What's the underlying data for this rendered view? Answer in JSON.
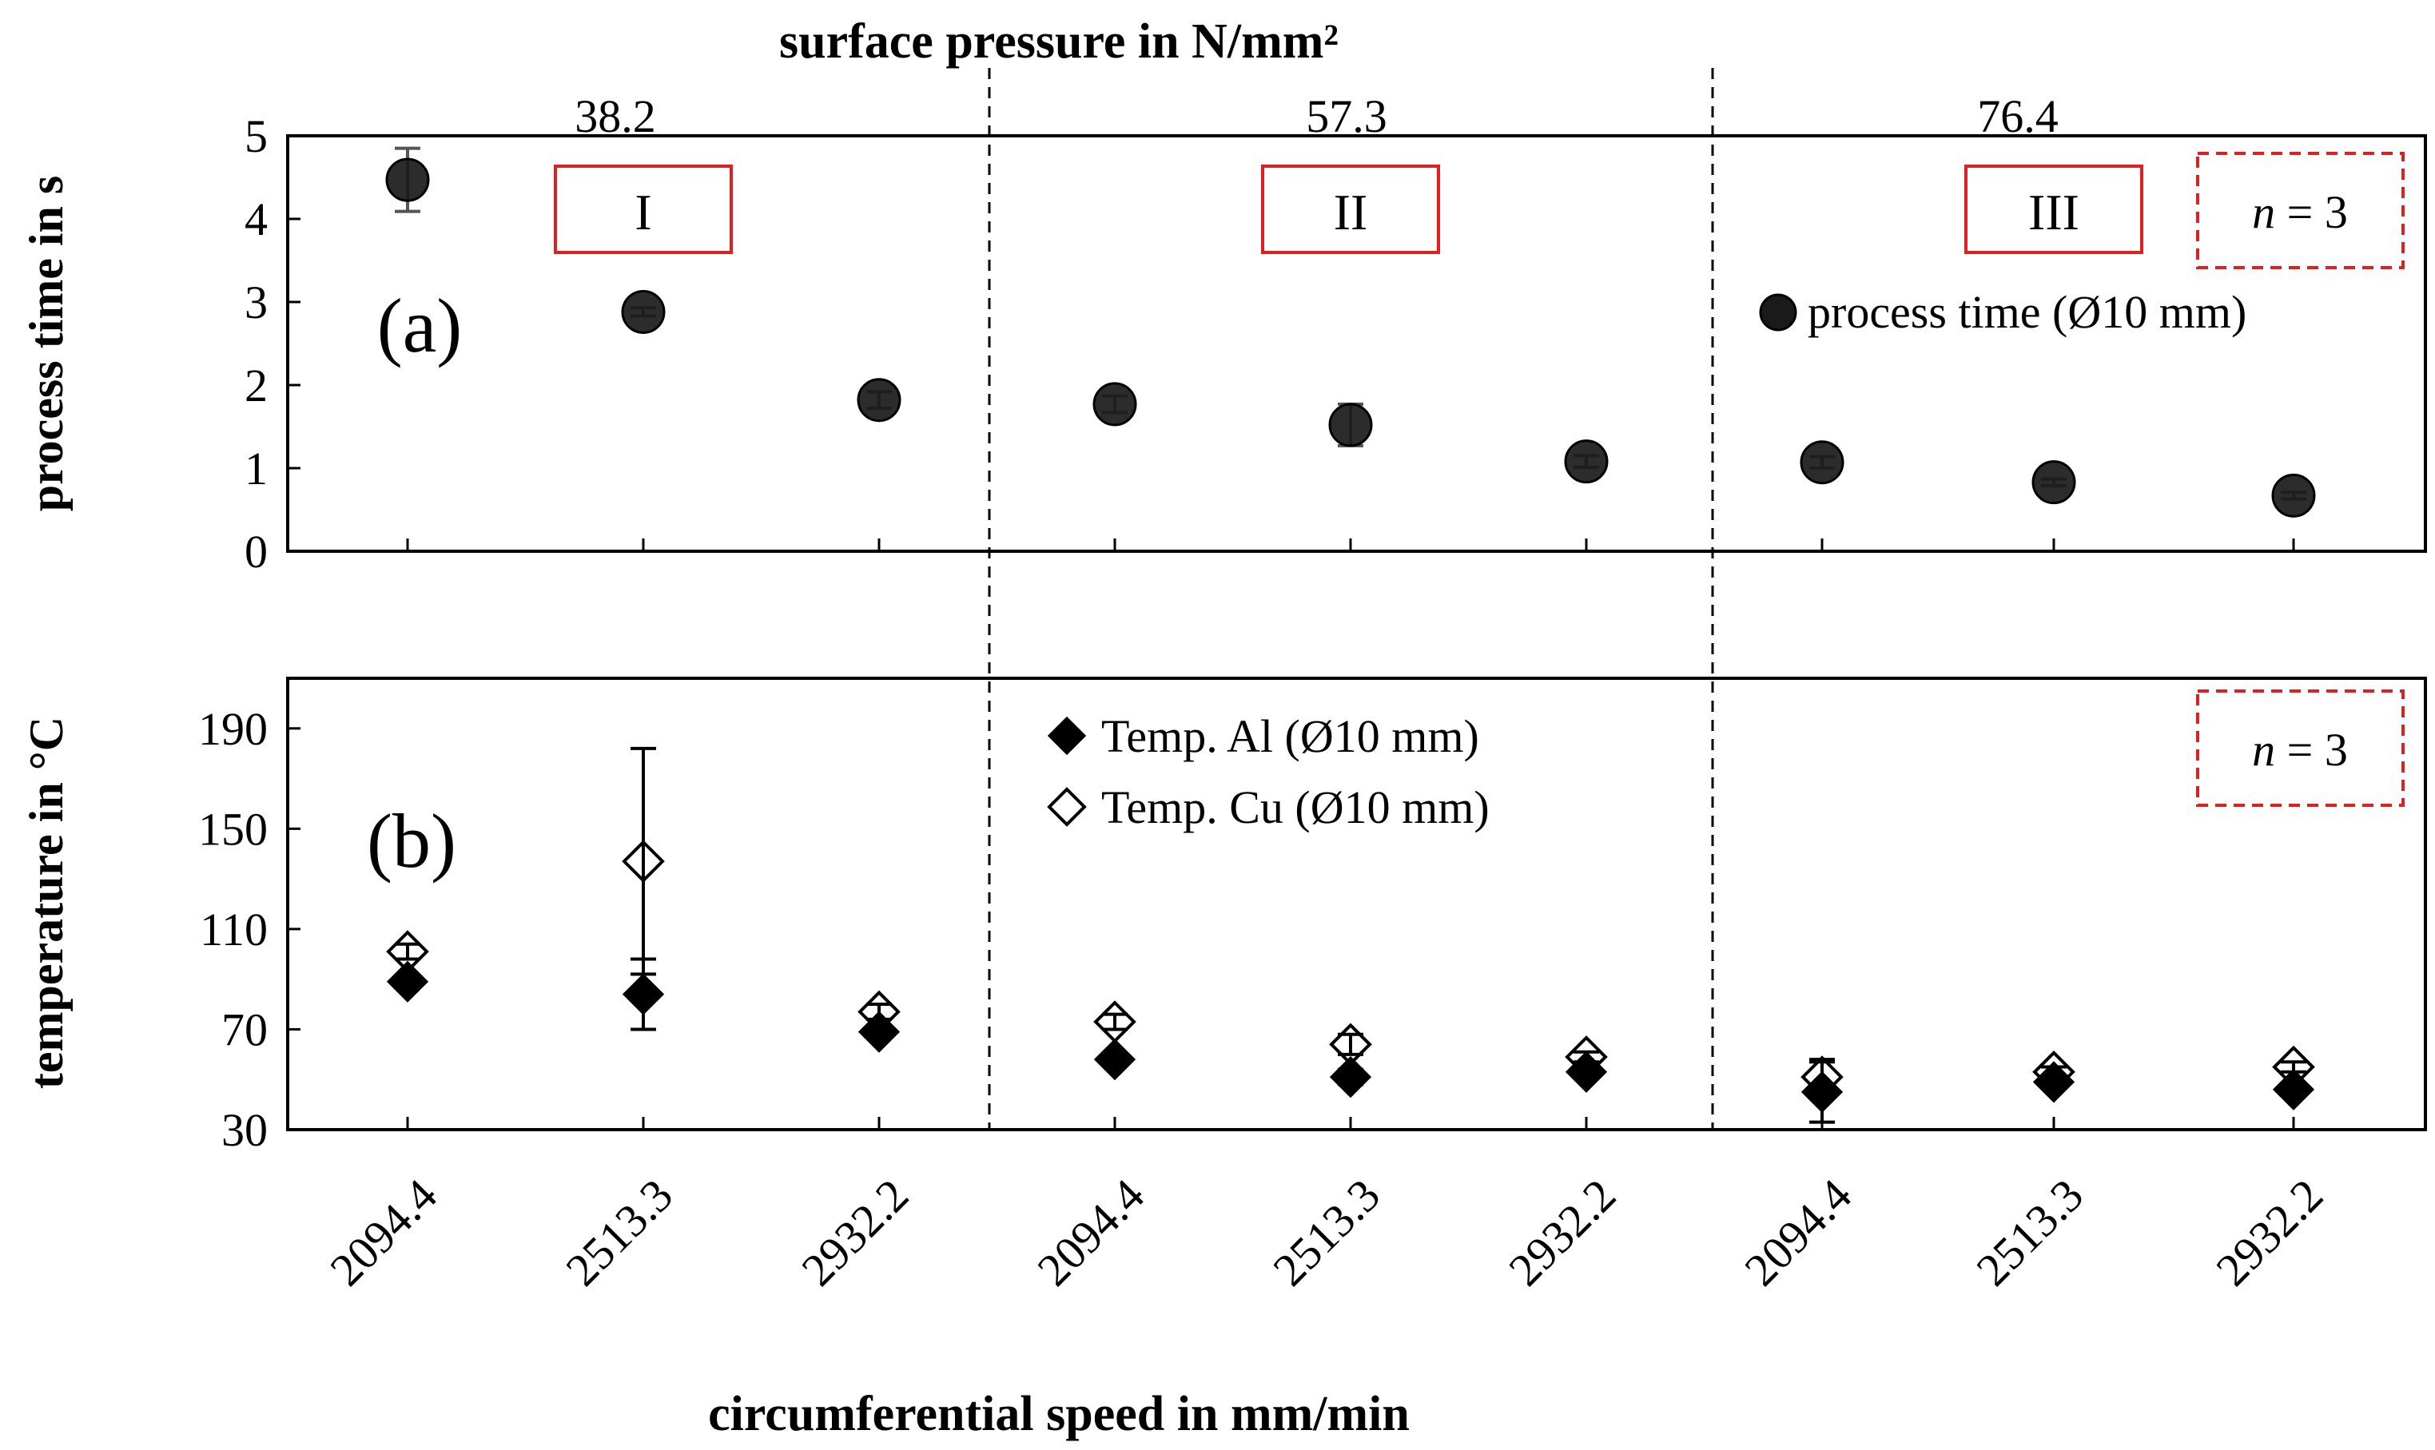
{
  "figure": {
    "top_title": "surface pressure in N/mm²",
    "x_axis_title": "circumferential speed in mm/min",
    "pressure_groups": [
      "38.2",
      "57.3",
      "76.4"
    ],
    "regions": [
      "I",
      "II",
      "III"
    ],
    "x_tick_labels": [
      "2094.4",
      "2513.3",
      "2932.2",
      "2094.4",
      "2513.3",
      "2932.2",
      "2094.4",
      "2513.3",
      "2932.2"
    ],
    "n_label": {
      "italic": "n",
      "rest": " = 3"
    },
    "colors": {
      "marker": "#1a1a1a",
      "region_box": "#e02020",
      "axis": "#000000"
    }
  },
  "chart_data": [
    {
      "panel": "a",
      "panel_label": "(a)",
      "type": "scatter",
      "ylabel": "process time in s",
      "ylim": [
        0,
        5
      ],
      "yticks": [
        "0",
        "1",
        "2",
        "3",
        "4",
        "5"
      ],
      "categories": [
        "2094.4",
        "2513.3",
        "2932.2",
        "2094.4",
        "2513.3",
        "2932.2",
        "2094.4",
        "2513.3",
        "2932.2"
      ],
      "series": [
        {
          "name": "process time (Ø10 mm)",
          "marker": "circle-filled",
          "values": [
            4.47,
            2.88,
            1.82,
            1.77,
            1.52,
            1.08,
            1.07,
            0.83,
            0.67
          ],
          "errors": [
            0.38,
            0.05,
            0.1,
            0.1,
            0.25,
            0.07,
            0.07,
            0.04,
            0.04
          ]
        }
      ]
    },
    {
      "panel": "b",
      "panel_label": "(b)",
      "type": "scatter",
      "ylabel": "temperature in °C",
      "ylim": [
        30,
        210
      ],
      "yticks": [
        "30",
        "70",
        "110",
        "150",
        "190"
      ],
      "categories": [
        "2094.4",
        "2513.3",
        "2932.2",
        "2094.4",
        "2513.3",
        "2932.2",
        "2094.4",
        "2513.3",
        "2932.2"
      ],
      "series": [
        {
          "name": "Temp. Al (Ø10 mm)",
          "marker": "diamond-filled",
          "values": [
            89,
            84,
            69,
            58,
            51,
            53,
            45,
            49,
            46
          ],
          "errors": [
            2,
            14,
            2,
            2,
            3,
            2,
            12,
            2,
            2
          ]
        },
        {
          "name": "Temp. Cu (Ø10 mm)",
          "marker": "diamond-open",
          "values": [
            101,
            137,
            77,
            73,
            64,
            59,
            51,
            53,
            55
          ],
          "errors": [
            3,
            45,
            3,
            3,
            4,
            2,
            7,
            2,
            2
          ]
        }
      ]
    }
  ]
}
